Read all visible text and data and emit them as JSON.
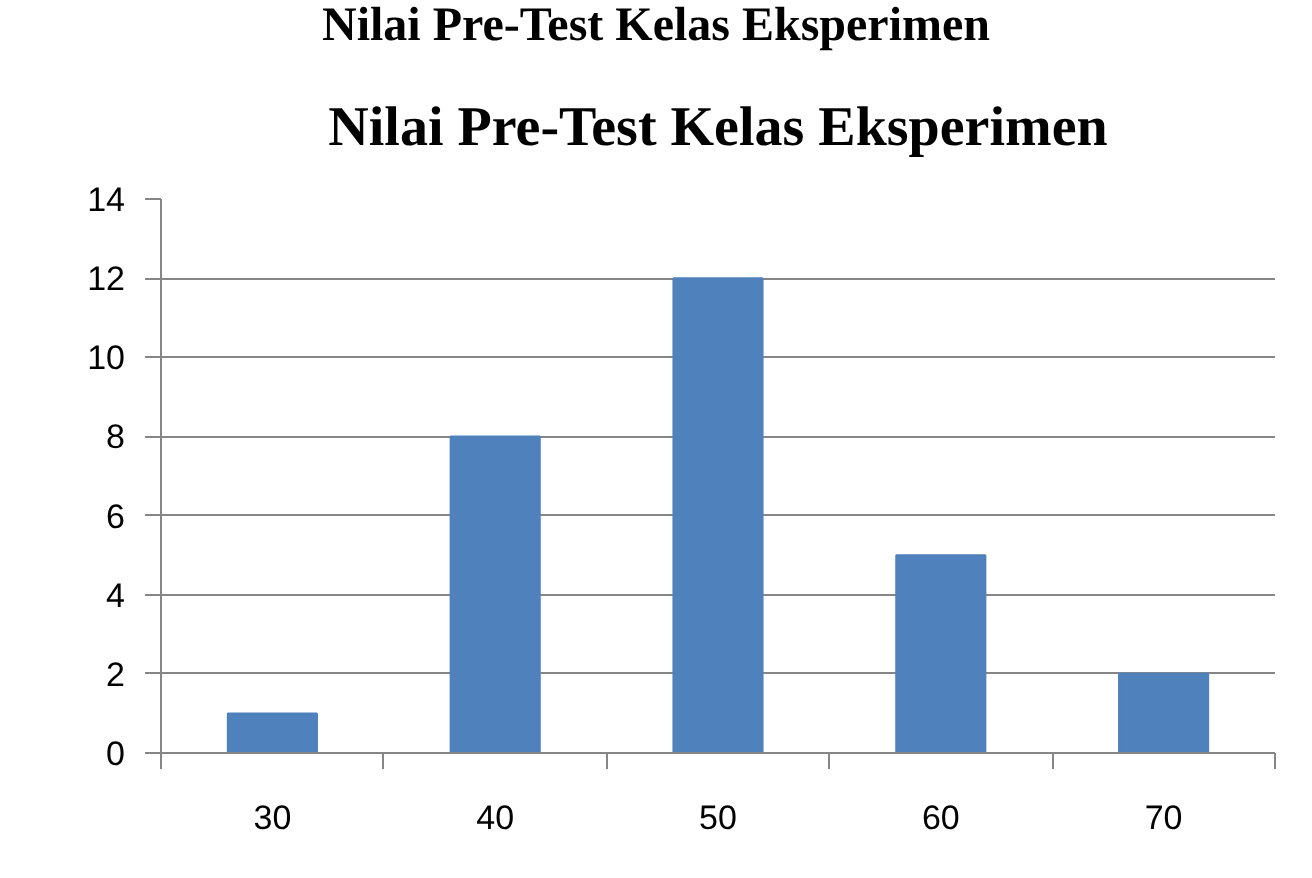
{
  "chart_data": {
    "type": "bar",
    "title": "Nilai Pre-Test Kelas Eksperimen",
    "annotations": [
      "Nilai Pre-Test Kelas Eksperimen"
    ],
    "categories": [
      "30",
      "40",
      "50",
      "60",
      "70"
    ],
    "values": [
      1,
      8,
      12,
      5,
      2
    ],
    "color": "#4f81bd",
    "ylim": [
      0,
      14
    ],
    "yticks": [
      0,
      2,
      4,
      6,
      8,
      10,
      12,
      14
    ],
    "grid": "y"
  }
}
